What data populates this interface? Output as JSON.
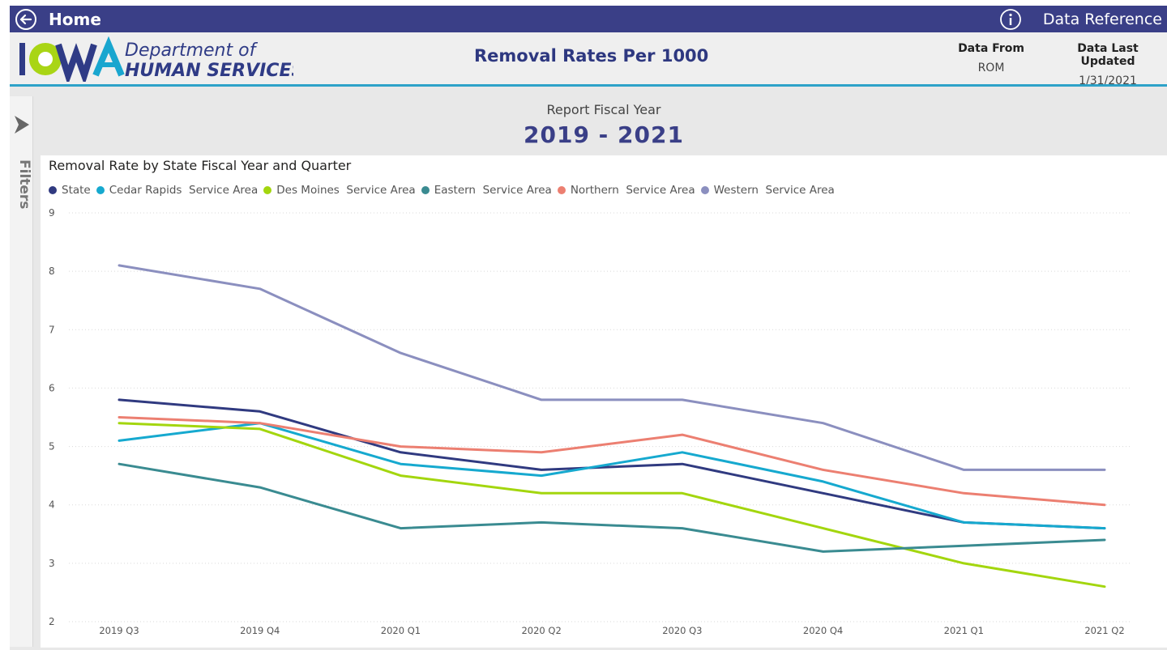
{
  "topbar": {
    "home_label": "Home",
    "data_reference_label": "Data Reference",
    "bg_color": "#3a3f87"
  },
  "header": {
    "logo_text_line1": "Department of",
    "logo_text_line2": "HUMAN SERVICES",
    "logo_letters": "IOWA",
    "title": "Removal Rates Per 1000",
    "data_from_label": "Data From",
    "data_from_value": "ROM",
    "last_updated_label": "Data Last Updated",
    "last_updated_value": "1/31/2021"
  },
  "filters_label": "Filters",
  "fiscal_year": {
    "label": "Report Fiscal Year",
    "value": "2019 - 2021"
  },
  "chart_data": {
    "type": "line",
    "title": "Removal Rate by State Fiscal Year and Quarter",
    "xlabel": "",
    "ylabel": "",
    "ylim": [
      2,
      9
    ],
    "yticks": [
      2,
      3,
      4,
      5,
      6,
      7,
      8,
      9
    ],
    "grid": true,
    "legend_position": "top-left",
    "categories": [
      "2019 Q3",
      "2019 Q4",
      "2020 Q1",
      "2020 Q2",
      "2020 Q3",
      "2020 Q4",
      "2021 Q1",
      "2021 Q2"
    ],
    "series": [
      {
        "name": "State",
        "color": "#303a80",
        "values": [
          5.8,
          5.6,
          4.9,
          4.6,
          4.7,
          4.2,
          3.7,
          3.6
        ]
      },
      {
        "name": "Cedar Rapids  Service Area",
        "color": "#16a9cf",
        "values": [
          5.1,
          5.4,
          4.7,
          4.5,
          4.9,
          4.4,
          3.7,
          3.6
        ]
      },
      {
        "name": "Des Moines  Service Area",
        "color": "#a3d60e",
        "values": [
          5.4,
          5.3,
          4.5,
          4.2,
          4.2,
          3.6,
          3.0,
          2.6
        ]
      },
      {
        "name": "Eastern  Service Area",
        "color": "#3a8b91",
        "values": [
          4.7,
          4.3,
          3.6,
          3.7,
          3.6,
          3.2,
          3.3,
          3.4
        ]
      },
      {
        "name": "Northern  Service Area",
        "color": "#ec7f71",
        "values": [
          5.5,
          5.4,
          5.0,
          4.9,
          5.2,
          4.6,
          4.2,
          4.0
        ]
      },
      {
        "name": "Western  Service Area",
        "color": "#8b8fbf",
        "values": [
          8.1,
          7.7,
          6.6,
          5.8,
          5.8,
          5.4,
          4.6,
          4.6
        ]
      }
    ]
  }
}
